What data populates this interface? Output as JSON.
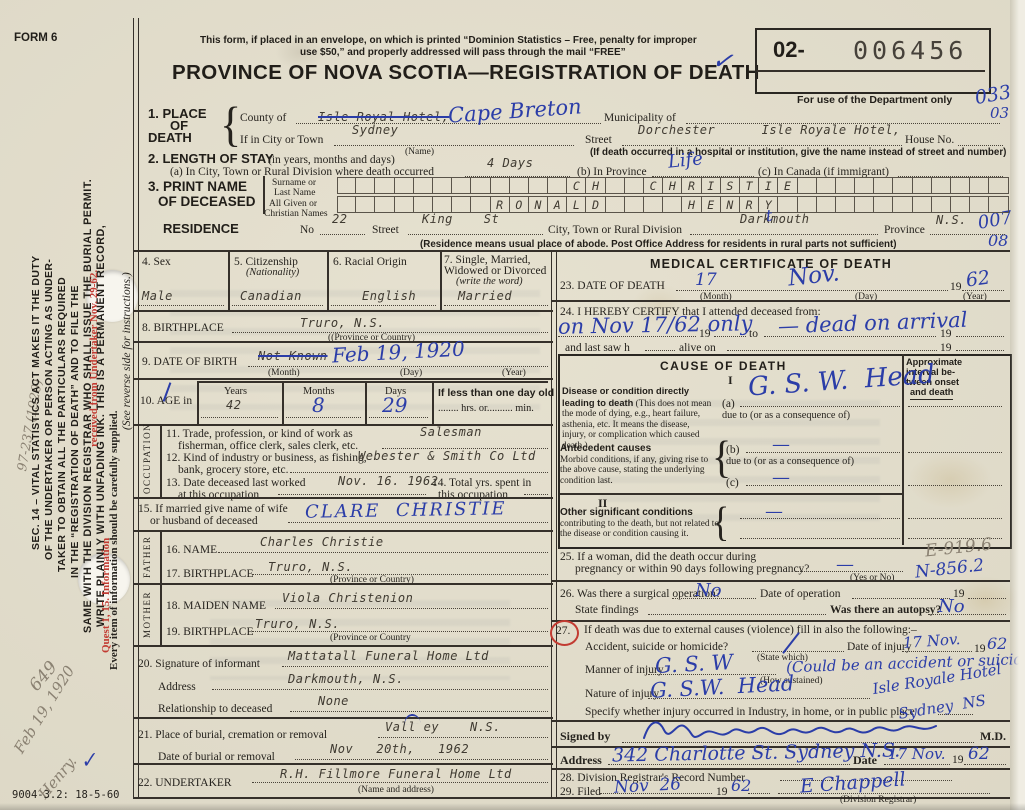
{
  "header": {
    "form_no": "FORM 6",
    "notice1": "This form, if placed in an envelope, on which is printed “Dominion Statistics – Free, penalty for improper",
    "notice2": "use $50,” and properly addressed will pass through the mail “FREE”",
    "title": "PROVINCE OF NOVA SCOTIA—REGISTRATION OF DEATH",
    "stamp_prefix": "02-",
    "stamp_number": "006456",
    "dept_note": "For use of the Department only",
    "code_a": "033",
    "code_b": "03",
    "code_c": "007",
    "code_d": "08"
  },
  "ann": {
    "check": "✓"
  },
  "margin": {
    "pencil_ref": "97-237 (1920)",
    "sec14": [
      "SEC. 14 – VITAL STATISTICS ACT MAKES IT THE DUTY",
      "OF THE UNDERTAKER OR PERSON ACTING AS UNDER-",
      "TAKER TO OBTAIN ALL THE PARTICULARS REQUIRED",
      "IN THE “REGISTRATION OF DEATH” AND TO FILE THE",
      "SAME WITH THE DIVISION REGISTRAR WHO SHALL ISSUE THE BURIAL PERMIT.",
      "WRITE PLAINLY WITH UNFADING INK. THIS IS A PERMANENT RECORD,",
      "Every item of information should be carefully supplied."
    ],
    "see_reverse": "(See reverse side for instructions.)",
    "red1": "Quest 1, 15. Information",
    "red2": "received from Undertaker Nov. 29-62.",
    "pencil_649": "649",
    "pencil_date": "Feb 19, 1920",
    "pencil_name": "Henry.",
    "print_code": "9004-3.2: 18-5-60"
  },
  "f1": {
    "no": "1.",
    "h1": "PLACE",
    "h2": "OF",
    "h3": "DEATH",
    "brace": "{",
    "county_label": "County of",
    "county_typed": "Isle Royal Hotel,",
    "county_hand": "Cape Breton",
    "municipality_label": "Municipality of",
    "city_label": "If in City or Town",
    "city_value": "Sydney",
    "name_sub": "(Name)",
    "street_label": "Street",
    "street_value": "Dorchester      Isle Royale Hotel,",
    "house_label": "House No.",
    "hospital_note": "(If death occurred in a hospital or institution, give the name instead of street and number)"
  },
  "f2": {
    "h": "2. LENGTH OF STAY",
    "h_sub": "(in years, months and days)",
    "a_label": "(a) In City, Town or Rural Division where death occurred",
    "a_value": "4 Days",
    "b_label": "(b) In Province",
    "b_value": "Life",
    "c_label": "(c) In Canada (if immigrant)"
  },
  "f3": {
    "h1": "3. PRINT NAME",
    "h2": "OF DECEASED",
    "surname_l1": "Surname or",
    "surname_l2": "Last Name",
    "given_l1": "All Given or",
    "given_l2": "Christian Names",
    "surname_boxes": "            CH  CHRISTIE",
    "given_boxes": "        RONALD    HENRY",
    "residence_label": "RESIDENCE",
    "no_label": "No",
    "no_value": "22",
    "street_label": "Street",
    "street_value": "King    St",
    "citydiv_label": "City, Town or Rural Division",
    "city_typed": "Darkmouth",
    "city_fix": "t",
    "province_label": "Province",
    "province_value": "N.S.",
    "note": "(Residence means usual place of abode. Post Office Address for residents in rural parts not sufficient)"
  },
  "f4": {
    "label": "4. Sex",
    "value": "Male"
  },
  "f5": {
    "label": "5. Citizenship",
    "sub": "(Nationality)",
    "value": "Canadian"
  },
  "f6": {
    "label": "6. Racial Origin",
    "value": "English"
  },
  "f7": {
    "l1": "7. Single, Married,",
    "l2": "Widowed or Divorced",
    "l3": "(write the word)",
    "value": "Married"
  },
  "f8": {
    "label": "8. BIRTHPLACE",
    "value": "Truro, N.S.",
    "sub": "((Province or Country)"
  },
  "f9": {
    "label": "9. DATE OF BIRTH",
    "typed": "Not Known",
    "hand": "Feb 19, 1920",
    "m": "(Month)",
    "d": "(Day)",
    "y": "(Year)"
  },
  "f10": {
    "label": "10. AGE in",
    "years_l": "Years",
    "years_v": "42",
    "months_l": "Months",
    "months_v": "8",
    "days_l": "Days",
    "days_v": "29",
    "less_l": "If less than one day old",
    "hrs": "hrs. or",
    "min": "min."
  },
  "occ": {
    "side": "OCCUPATION",
    "f11_l1": "11. Trade, profession, or kind of work as",
    "f11_l2": "fisherman, office clerk, sales clerk, etc.",
    "f11_v": "Salesman",
    "f12_l1": "12. Kind of industry or business, as fishing,",
    "f12_l2": "bank, grocery store, etc.",
    "f12_v": "Webester & Smith Co Ltd",
    "f13_l1": "13. Date deceased last worked",
    "f13_l2": "at this occupation",
    "f13_v": "Nov. 16. 1962",
    "f14_l1": "14. Total yrs. spent in",
    "f14_l2": "this occupation"
  },
  "f15": {
    "l1": "15. If married give name of wife",
    "l2": "or husband of deceased",
    "value": "CLARE  CHRISTIE"
  },
  "father": {
    "side": "FATHER",
    "f16_label": "16. NAME",
    "f16_v": "Charles Christie",
    "f17_label": "17. BIRTHPLACE",
    "f17_v": "Truro, N.S.",
    "f17_sub": "(Province or Country)"
  },
  "mother": {
    "side": "MOTHER",
    "f18_label": "18. MAIDEN NAME",
    "f18_v": "Viola Christenion",
    "f19_label": "19. BIRTHPLACE",
    "f19_v": "Truro, N.S.",
    "f19_sub": "(Province or Country"
  },
  "f20": {
    "label": "20. Signature of informant",
    "value": "Mattatall Funeral Home Ltd",
    "addr_label": "Address",
    "addr_value": "Darkmouth, N.S.",
    "rel_label": "Relationship to deceased",
    "rel_value": "None"
  },
  "f21": {
    "label": "21. Place of burial, cremation or removal",
    "value": "Vall ey    N.S.",
    "date_label": "Date of burial or removal",
    "date_value": "Nov   20th,   1962"
  },
  "f22": {
    "label": "22. UNDERTAKER",
    "value": "R.H. Fillmore Funeral Home Ltd",
    "sub": "(Name and address)"
  },
  "med": {
    "title": "MEDICAL CERTIFICATE OF DEATH",
    "f23_label": "23. DATE OF DEATH",
    "f23_day": "17",
    "f23_month": "Nov.",
    "m": "(Month)",
    "d": "(Day)",
    "y": "(Year)",
    "y19": "19",
    "f23_year": "62",
    "f24_l1": "24. I HEREBY CERTIFY that I attended deceased from:",
    "f24_hand": "on Nov 17/62 only",
    "f24_hand2": "— dead on arrival",
    "f24_to": "to",
    "f24_l2": "and last saw h",
    "f24_alive": "alive on"
  },
  "cause": {
    "title": "CAUSE OF DEATH",
    "brace": "{",
    "interval": [
      "Approximate",
      "interval be-",
      "tween onset",
      "and death"
    ],
    "r1": "I",
    "lead_b": "Disease or condition directly leading to death",
    "lead_n": "(This does not mean the mode of dying, e.g., heart failure, asthenia, etc. It means the disease, injury, or complication which caused death.)",
    "a": "(a)",
    "a_v": "G. S. W.  Head",
    "due1": "due to (or as a consequence of)",
    "ante_b": "Antecedent causes",
    "ante_n": "Morbid conditions, if any, giving rise to the above cause, stating the underlying condition last.",
    "b": "(b)",
    "b_v": "—",
    "due2": "due to (or as a consequence of)",
    "c": "(c)",
    "c_v": "—",
    "r2": "II",
    "other_b": "Other significant conditions",
    "other_n": "contributing to the death, but not related to the disease or condition causing it.",
    "other_v": "—"
  },
  "f25": {
    "l1": "25. If a woman, did the death occur during",
    "l2": "pregnancy or within 90 days following pregnancy?",
    "sub": "(Yes or No)",
    "dash": "—",
    "code1": "E-919.6",
    "code2": "N-856.2"
  },
  "f26": {
    "l1": "26. Was there a surgical operation?",
    "v1": "No",
    "date_label": "Date of operation",
    "y19": "19",
    "l2": "State findings",
    "autopsy": "Was there an autopsy?",
    "v2": "No"
  },
  "f27": {
    "no": "27.",
    "l1": "If death was due to external causes (violence) fill in also the following:–",
    "acc": "Accident, suicide or homicide?",
    "state": "(State which)",
    "di_label": "Date of injury",
    "di_v": "17 Nov.",
    "y19": "19",
    "di_y": "62",
    "manner": "Manner of injury",
    "manner_v": "G. S. W",
    "how": "(How sustained)",
    "note": "(Could be an accident or suicide)",
    "nature": "Nature of injury",
    "nature_v": "G. S.W.  Head",
    "spec": "Specify whether injury occurred in Industry, in home, or in public place",
    "spec_v1": "Isle Royale Hotel",
    "spec_v2": "Sydney  NS"
  },
  "sig": {
    "signed": "Signed by",
    "md": "M.D.",
    "addr_label": "Address",
    "addr_v": "342 Charlotte St. Sydney N.S.",
    "date_label": "Date",
    "date_v": "17 Nov.",
    "y19": "19",
    "y_v": "62"
  },
  "f28": {
    "label": "28. Division Registrar's Record Number"
  },
  "f29": {
    "label": "29. Filed",
    "v": "Nov  26",
    "y19": "19",
    "y_v": "62",
    "registrar": "E Chappell",
    "sub": "(Division Registrar)"
  }
}
